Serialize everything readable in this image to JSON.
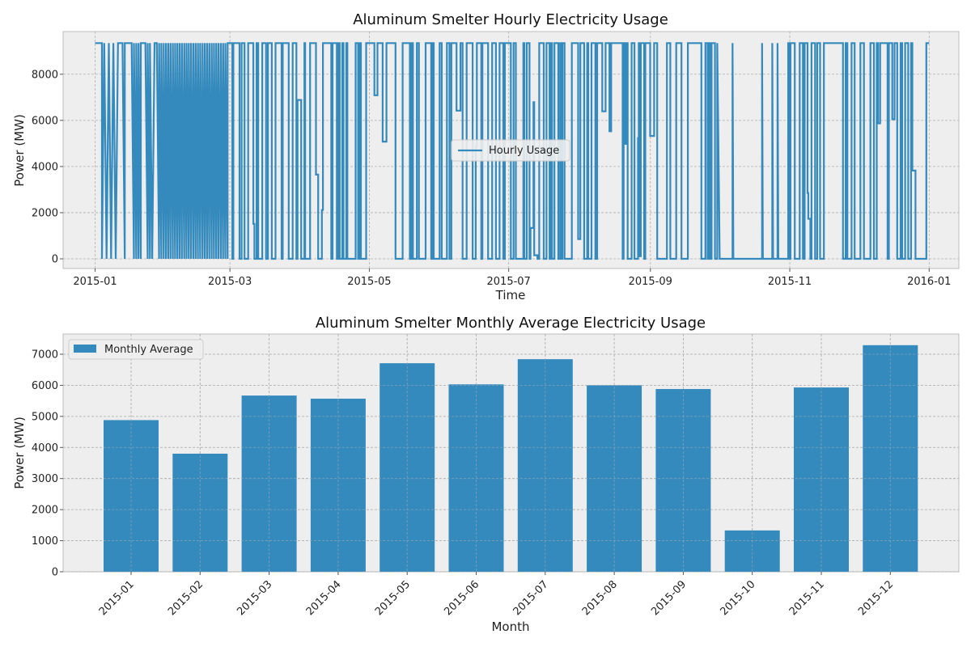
{
  "chart_data": [
    {
      "type": "line",
      "title": "Aluminum Smelter Hourly Electricity Usage",
      "xlabel": "Time",
      "ylabel": "Power (MW)",
      "x_ticks": [
        "2015-01",
        "2015-03",
        "2015-05",
        "2015-07",
        "2015-09",
        "2015-11",
        "2016-01"
      ],
      "y_ticks": [
        0,
        2000,
        4000,
        6000,
        8000
      ],
      "xlim": [
        "2014-12-18",
        "2016-01-14"
      ],
      "ylim": [
        -420,
        9850
      ],
      "legend": "center",
      "grid": true,
      "color": "#348abd",
      "series": [
        {
          "name": "Hourly Usage",
          "points": [
            [
              "2015-01-01",
              9350
            ],
            [
              "2015-01-04",
              9350
            ],
            [
              "2015-01-04",
              0
            ],
            [
              "2015-01-05",
              9350
            ],
            [
              "2015-01-06",
              0
            ],
            [
              "2015-01-07",
              9350
            ],
            [
              "2015-01-08",
              0
            ],
            [
              "2015-01-09",
              9350
            ],
            [
              "2015-01-10",
              0
            ],
            [
              "2015-01-11",
              9350
            ],
            [
              "2015-01-13",
              9350
            ],
            [
              "2015-01-14",
              0
            ],
            [
              "2015-01-14",
              9350
            ],
            [
              "2015-01-17",
              9350
            ],
            [
              "2015-01-18",
              0
            ],
            [
              "2015-01-18",
              9350
            ],
            [
              "2015-01-19",
              0
            ],
            [
              "2015-01-19",
              9350
            ],
            [
              "2015-01-20",
              0
            ],
            [
              "2015-01-20",
              9350
            ],
            [
              "2015-01-21",
              0
            ],
            [
              "2015-01-21",
              9350
            ],
            [
              "2015-01-23",
              9350
            ],
            [
              "2015-01-24",
              0
            ],
            [
              "2015-01-24",
              9350
            ],
            [
              "2015-01-25",
              0
            ],
            [
              "2015-01-25",
              9350
            ],
            [
              "2015-01-26",
              0
            ],
            [
              "2015-01-27",
              9350
            ],
            [
              "2015-01-28",
              9350
            ],
            [
              "2015-01-29",
              0
            ],
            [
              "2015-01-29",
              9350
            ],
            [
              "2015-01-30",
              0
            ],
            [
              "2015-01-30",
              9350
            ],
            [
              "2015-01-31",
              0
            ],
            [
              "2015-01-31",
              9350
            ],
            [
              "2015-02-01",
              0
            ],
            [
              "2015-02-01",
              9350
            ],
            [
              "2015-02-02",
              0
            ],
            [
              "2015-02-02",
              9350
            ],
            [
              "2015-02-03",
              0
            ],
            [
              "2015-02-03",
              9350
            ],
            [
              "2015-02-04",
              0
            ],
            [
              "2015-02-04",
              9350
            ],
            [
              "2015-02-05",
              0
            ],
            [
              "2015-02-05",
              9350
            ],
            [
              "2015-02-06",
              0
            ],
            [
              "2015-02-06",
              9350
            ],
            [
              "2015-02-07",
              0
            ],
            [
              "2015-02-07",
              9350
            ],
            [
              "2015-02-08",
              0
            ],
            [
              "2015-02-08",
              9350
            ],
            [
              "2015-02-09",
              0
            ],
            [
              "2015-02-09",
              9350
            ],
            [
              "2015-02-10",
              0
            ],
            [
              "2015-02-10",
              9350
            ],
            [
              "2015-02-11",
              0
            ],
            [
              "2015-02-11",
              9350
            ],
            [
              "2015-02-12",
              0
            ],
            [
              "2015-02-12",
              9350
            ],
            [
              "2015-02-13",
              0
            ],
            [
              "2015-02-13",
              9350
            ],
            [
              "2015-02-14",
              0
            ],
            [
              "2015-02-14",
              9350
            ],
            [
              "2015-02-15",
              0
            ],
            [
              "2015-02-15",
              9350
            ],
            [
              "2015-02-16",
              0
            ],
            [
              "2015-02-16",
              9350
            ],
            [
              "2015-02-17",
              0
            ],
            [
              "2015-02-17",
              9350
            ],
            [
              "2015-02-18",
              0
            ],
            [
              "2015-02-18",
              9350
            ],
            [
              "2015-02-19",
              0
            ],
            [
              "2015-02-19",
              9350
            ],
            [
              "2015-02-20",
              0
            ],
            [
              "2015-02-20",
              9350
            ],
            [
              "2015-02-21",
              0
            ],
            [
              "2015-02-21",
              9350
            ],
            [
              "2015-02-22",
              0
            ],
            [
              "2015-02-22",
              9350
            ],
            [
              "2015-02-23",
              0
            ],
            [
              "2015-02-23",
              9350
            ],
            [
              "2015-02-24",
              0
            ],
            [
              "2015-02-24",
              9350
            ],
            [
              "2015-02-25",
              0
            ],
            [
              "2015-02-25",
              9350
            ],
            [
              "2015-02-26",
              0
            ],
            [
              "2015-02-26",
              9350
            ],
            [
              "2015-02-27",
              0
            ],
            [
              "2015-02-27",
              9350
            ],
            [
              "2015-02-28",
              0
            ],
            [
              "2015-02-28",
              9350
            ]
          ]
        }
      ]
    },
    {
      "type": "bar",
      "title": "Aluminum Smelter Monthly Average Electricity Usage",
      "xlabel": "Month",
      "ylabel": "Power (MW)",
      "categories": [
        "2015-01",
        "2015-02",
        "2015-03",
        "2015-04",
        "2015-05",
        "2015-06",
        "2015-07",
        "2015-08",
        "2015-09",
        "2015-10",
        "2015-11",
        "2015-12"
      ],
      "values": [
        4880,
        3800,
        5670,
        5570,
        6710,
        6030,
        6840,
        6000,
        5880,
        1330,
        5930,
        7290
      ],
      "y_ticks": [
        0,
        1000,
        2000,
        3000,
        4000,
        5000,
        6000,
        7000
      ],
      "ylim": [
        0,
        7650
      ],
      "legend": "top-left",
      "grid": true,
      "color": "#348abd",
      "series": [
        {
          "name": "Monthly Average"
        }
      ]
    }
  ]
}
